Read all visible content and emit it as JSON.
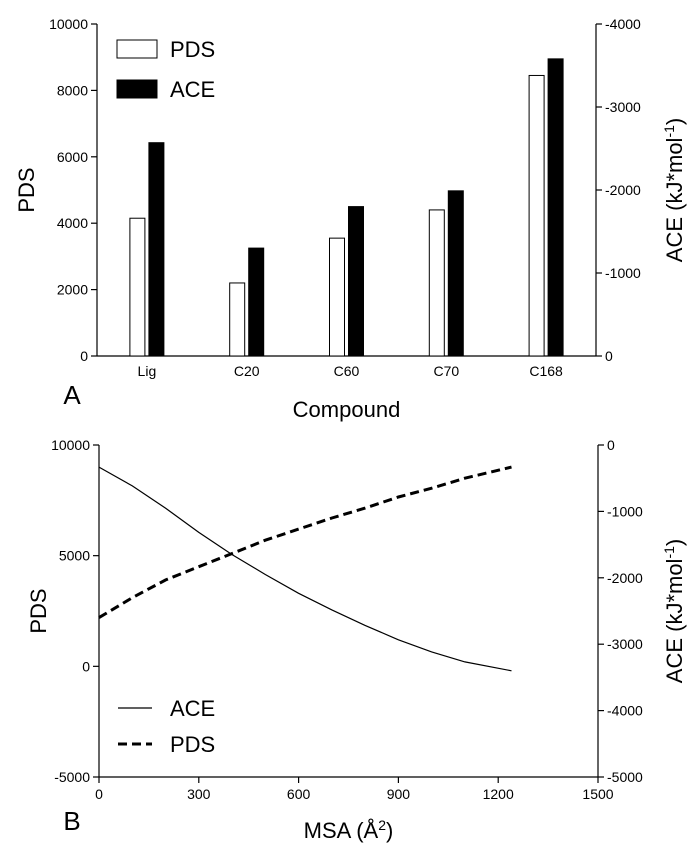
{
  "chart_data": [
    {
      "panel": "A",
      "type": "bar",
      "title": "",
      "xlabel": "Compound",
      "ylabel": "PDS",
      "y2label": "ACE (kJ*mol-1)",
      "ylabel_right": {
        "base": "ACE (kJ*mol",
        "sup": "-1",
        "tail": ")"
      },
      "categories": [
        "Lig",
        "C20",
        "C60",
        "C70",
        "C168"
      ],
      "ylim": [
        0,
        10000
      ],
      "y_ticks": [
        0,
        2000,
        4000,
        6000,
        8000,
        10000
      ],
      "y2lim": [
        0,
        -4000
      ],
      "y2_ticks": [
        0,
        -1000,
        -2000,
        -3000,
        -4000
      ],
      "legend_position": "top-left",
      "series": [
        {
          "name": "PDS",
          "axis": "left",
          "color": "#ffffff",
          "values": [
            4150,
            2200,
            3550,
            4400,
            8450
          ]
        },
        {
          "name": "ACE",
          "axis": "right",
          "color": "#000000",
          "values": [
            -2570,
            -1300,
            -1800,
            -1990,
            -3580
          ]
        }
      ]
    },
    {
      "panel": "B",
      "type": "line",
      "title": "",
      "xlabel": {
        "base": "MSA (Å",
        "sup": "2",
        "tail": ")"
      },
      "ylabel": "PDS",
      "y2label": "ACE (kJ*mol-1)",
      "ylabel_right": {
        "base": "ACE (kJ*mol",
        "sup": "-1",
        "tail": ")"
      },
      "xlim": [
        0,
        1500
      ],
      "x_ticks": [
        0,
        300,
        600,
        900,
        1200,
        1500
      ],
      "ylim": [
        -5000,
        10000
      ],
      "y_ticks": [
        -5000,
        0,
        5000,
        10000
      ],
      "y2lim": [
        -5000,
        0
      ],
      "y2_ticks": [
        -5000,
        -4000,
        -3000,
        -2000,
        -1000,
        0
      ],
      "legend_position": "bottom-left",
      "series": [
        {
          "name": "ACE",
          "axis": "left",
          "style": "solid",
          "x": [
            0,
            100,
            200,
            300,
            400,
            500,
            600,
            700,
            800,
            900,
            1000,
            1100,
            1240
          ],
          "y": [
            9000,
            8150,
            7150,
            6050,
            5050,
            4150,
            3300,
            2550,
            1850,
            1200,
            650,
            200,
            -200
          ]
        },
        {
          "name": "PDS",
          "axis": "left",
          "style": "dashed",
          "x": [
            0,
            100,
            200,
            300,
            400,
            500,
            600,
            700,
            800,
            900,
            1000,
            1100,
            1240
          ],
          "y": [
            2200,
            3100,
            3900,
            4500,
            5100,
            5700,
            6200,
            6700,
            7150,
            7650,
            8050,
            8500,
            9000
          ]
        }
      ]
    }
  ],
  "panel_labels": [
    "A",
    "B"
  ]
}
